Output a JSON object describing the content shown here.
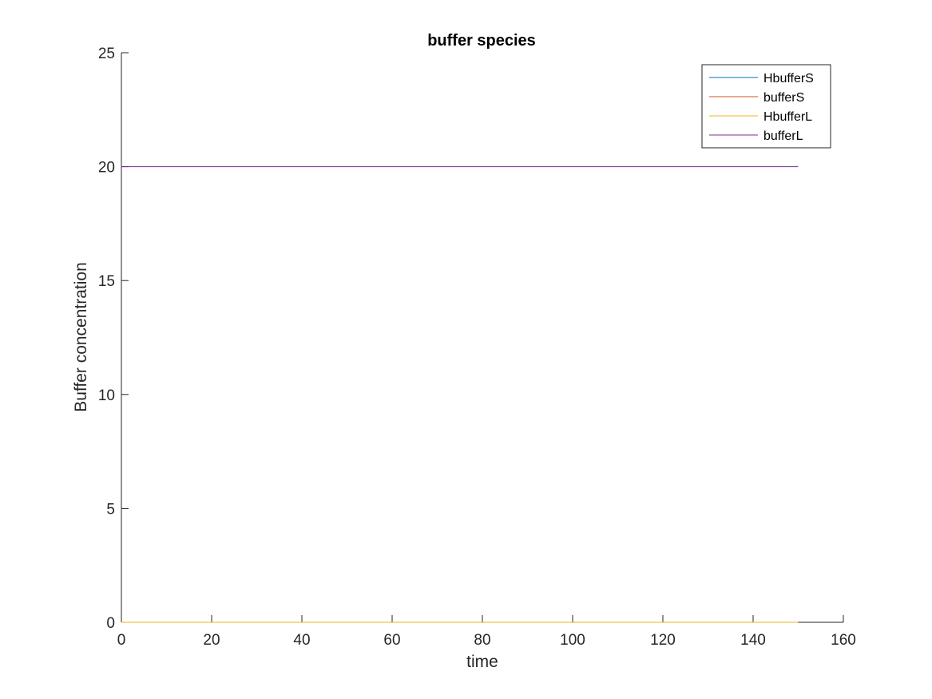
{
  "chart_data": {
    "type": "line",
    "title": "buffer species",
    "xlabel": "time",
    "ylabel": "Buffer concentration",
    "xlim": [
      0,
      160
    ],
    "ylim": [
      0,
      25
    ],
    "xticks": [
      0,
      20,
      40,
      60,
      80,
      100,
      120,
      140,
      160
    ],
    "yticks": [
      0,
      5,
      10,
      15,
      20,
      25
    ],
    "grid": false,
    "legend_location": "top-right",
    "series": [
      {
        "name": "HbufferS",
        "color": "#0072BD",
        "x": [
          0,
          150
        ],
        "y": [
          0,
          0
        ]
      },
      {
        "name": "bufferS",
        "color": "#D95319",
        "x": [
          0,
          150
        ],
        "y": [
          0,
          0
        ]
      },
      {
        "name": "HbufferL",
        "color": "#EDB120",
        "x": [
          0,
          150
        ],
        "y": [
          0,
          0
        ]
      },
      {
        "name": "bufferL",
        "color": "#7E2F8E",
        "x": [
          0,
          150
        ],
        "y": [
          20,
          20
        ]
      }
    ]
  }
}
